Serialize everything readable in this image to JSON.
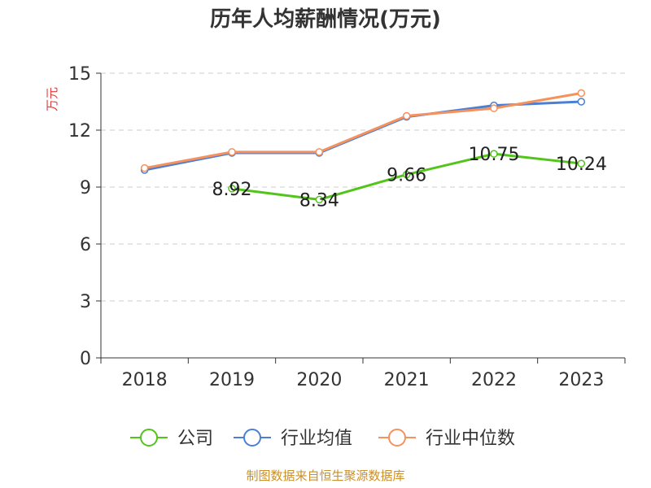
{
  "chart_data": {
    "type": "line",
    "title": "历年人均薪酬情况(万元)",
    "ylabel": "万元",
    "xlabel": "",
    "categories": [
      "2018",
      "2019",
      "2020",
      "2021",
      "2022",
      "2023"
    ],
    "ylim": [
      0,
      15
    ],
    "yticks": [
      0,
      3,
      6,
      9,
      12,
      15
    ],
    "grid": true,
    "legend_position": "bottom",
    "series": [
      {
        "name": "公司",
        "color": "#52c41a",
        "values": [
          null,
          8.92,
          8.34,
          9.66,
          10.75,
          10.24
        ],
        "labels": [
          "",
          "8.92",
          "8.34",
          "9.66",
          "10.75",
          "10.24"
        ]
      },
      {
        "name": "行业均值",
        "color": "#4a7fd4",
        "values": [
          9.9,
          10.8,
          10.8,
          12.7,
          13.3,
          13.5
        ]
      },
      {
        "name": "行业中位数",
        "color": "#f4915d",
        "values": [
          10.0,
          10.85,
          10.85,
          12.75,
          13.15,
          13.95
        ]
      }
    ]
  },
  "source": "制图数据来自恒生聚源数据库"
}
